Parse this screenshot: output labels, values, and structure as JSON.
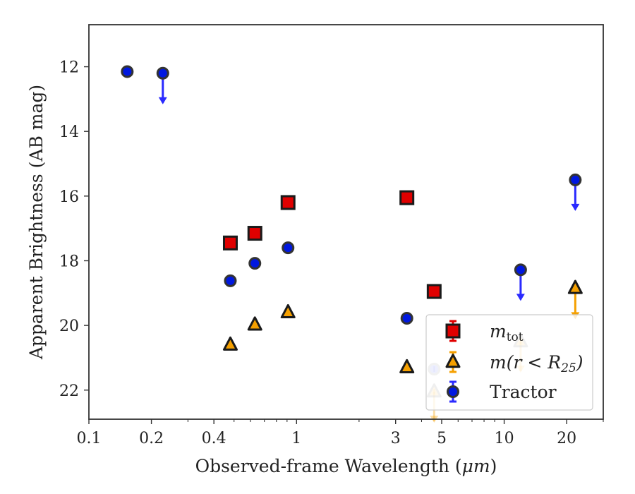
{
  "chart_data": {
    "type": "scatter",
    "xlabel_prefix": "Observed-frame Wavelength (",
    "xlabel_unit": "μm",
    "xlabel_suffix": ")",
    "ylabel": "Apparent Brightness (AB mag)",
    "x_scale": "log",
    "xlim": [
      0.1,
      30
    ],
    "ylim": [
      22.9,
      10.7
    ],
    "y_inverted": true,
    "grid": false,
    "legend_position": "lower-right",
    "x_ticks": [
      "0.1",
      "0.2",
      "0.4",
      "1",
      "3",
      "5",
      "10",
      "20"
    ],
    "x_tick_values": [
      0.1,
      0.2,
      0.4,
      1,
      3,
      5,
      10,
      20
    ],
    "y_ticks": [
      "12",
      "14",
      "16",
      "18",
      "20",
      "22"
    ],
    "y_tick_values": [
      12,
      14,
      16,
      18,
      20,
      22
    ],
    "series": [
      {
        "name": "m_tot",
        "legend_main": "m",
        "legend_sub": "tot",
        "marker": "square",
        "face": "#e00000",
        "edge": "#1a1a1a",
        "errcolor": "#e00000",
        "points": [
          {
            "x": 0.48,
            "y": 17.45
          },
          {
            "x": 0.63,
            "y": 17.15
          },
          {
            "x": 0.91,
            "y": 16.2
          },
          {
            "x": 3.4,
            "y": 16.05
          },
          {
            "x": 4.6,
            "y": 18.95
          }
        ]
      },
      {
        "name": "m(r < R25)",
        "legend_main": "m(r < R",
        "legend_sub": "25",
        "legend_close": ")",
        "marker": "triangle",
        "face": "#f5a000",
        "edge": "#1a1a1a",
        "errcolor": "#f5a000",
        "points": [
          {
            "x": 0.48,
            "y": 20.6
          },
          {
            "x": 0.63,
            "y": 19.98
          },
          {
            "x": 0.91,
            "y": 19.6
          },
          {
            "x": 3.4,
            "y": 21.3
          },
          {
            "x": 4.6,
            "y": 22.05,
            "upper_limit": true,
            "faded": true
          },
          {
            "x": 12.0,
            "y": 20.5,
            "upper_limit": true,
            "faded": true
          },
          {
            "x": 22.0,
            "y": 18.85,
            "upper_limit": true
          }
        ]
      },
      {
        "name": "Tractor",
        "marker": "circle",
        "face": "#0018e0",
        "edge": "#333333",
        "errcolor": "#2a2aff",
        "points": [
          {
            "x": 0.153,
            "y": 12.15
          },
          {
            "x": 0.227,
            "y": 12.2,
            "upper_limit": true
          },
          {
            "x": 0.48,
            "y": 18.62
          },
          {
            "x": 0.63,
            "y": 18.08
          },
          {
            "x": 0.91,
            "y": 17.6
          },
          {
            "x": 3.4,
            "y": 19.78
          },
          {
            "x": 4.6,
            "y": 21.35,
            "faded": true
          },
          {
            "x": 12.0,
            "y": 18.28,
            "upper_limit": true
          },
          {
            "x": 22.0,
            "y": 15.5,
            "upper_limit": true
          }
        ]
      }
    ]
  }
}
